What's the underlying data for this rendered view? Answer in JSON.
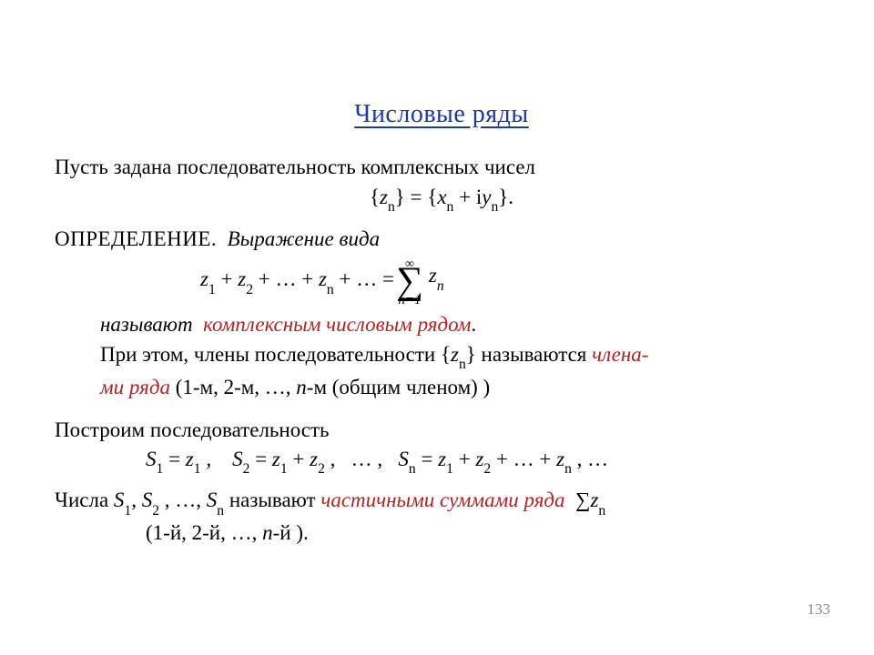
{
  "title": "Числовые ряды",
  "p1_line1": "Пусть задана последовательность комплексных чисел",
  "seq_formula": "{zₙ} = {xₙ + iyₙ}.",
  "seq_formula_x": "x",
  "seq_formula_iy": "iy",
  "seq_formula_n": "n",
  "def_label": "ОПРЕДЕЛЕНИЕ.",
  "def_intro": "Выражение вида",
  "sum_inf": "∞",
  "sum_lower": "n=1",
  "sum_term_z": "z",
  "sum_term_sub": "n",
  "series_left1": "z",
  "series_plus": " + ",
  "series_dots": " … ",
  "series_eq": " = ",
  "def_call": "называют",
  "def_name": "комплексным числовым рядом",
  "def_period": ".",
  "def_follow1a": "При этом, члены последовательности {",
  "def_follow1b": "} называются ",
  "def_members": "члена-",
  "def_members2": "ми ряда",
  "def_members_tail": " (1-м, 2-м, …, ",
  "def_members_n": "n",
  "def_members_end": "-м (общим членом) )",
  "p2": "Построим последовательность",
  "S": "S",
  "eq": " = ",
  "z": "z",
  "comma": " ,",
  "dots": " … ",
  "ps_line_tail": " , …",
  "p3a": "Числа  ",
  "p3b": " называют ",
  "p3_name": "частичными суммами ряда",
  "p3_tail_sum": "∑",
  "p3_indent": "(1-й, 2-й, …, ",
  "p3_n": "n",
  "p3_end": "-й ).",
  "pagenum": "133",
  "colors": {
    "title": "#1a3a9c",
    "red": "#b22222",
    "text": "#000000",
    "pagenum": "#888888",
    "background": "#ffffff"
  },
  "fontsizes": {
    "title": 28,
    "body": 23,
    "pagenum": 17,
    "sigma": 42
  }
}
